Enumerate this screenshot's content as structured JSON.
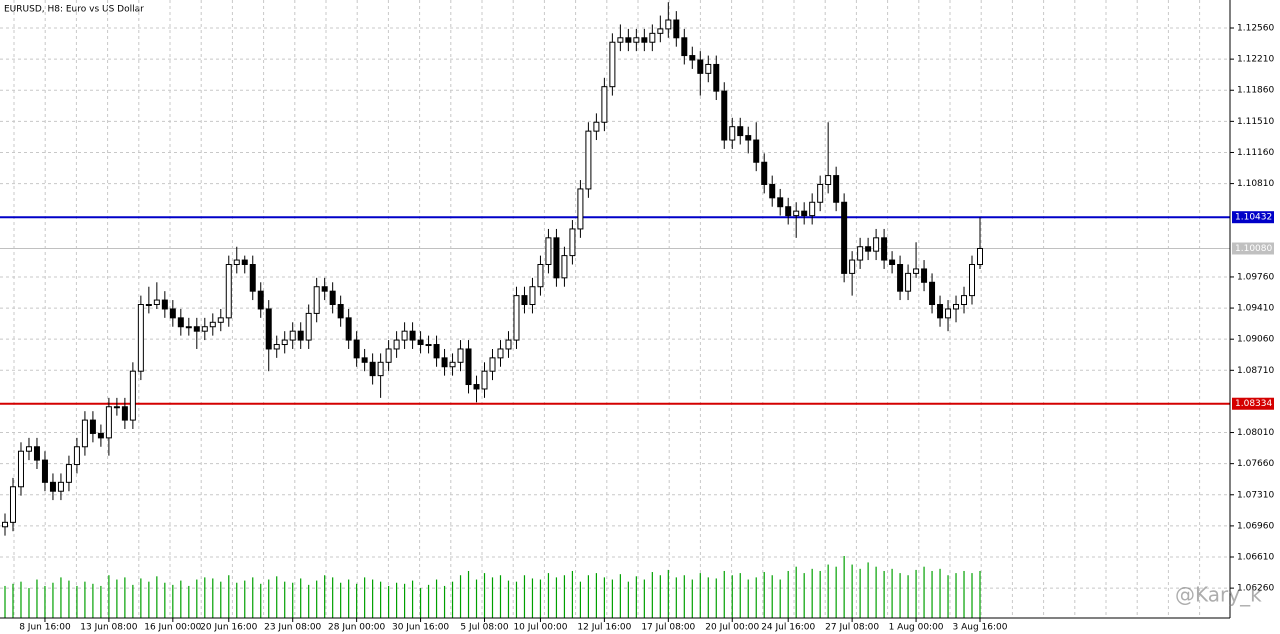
{
  "chart_data": {
    "type": "candlestick",
    "title": "EURUSD, H8:  Euro vs US Dollar",
    "watermark": "@Kary_k",
    "categories": [
      null,
      null,
      null,
      null,
      null,
      "8 Jun 16:00",
      null,
      null,
      null,
      null,
      null,
      null,
      null,
      "13 Jun 08:00",
      null,
      null,
      null,
      null,
      null,
      null,
      null,
      "16 Jun 00:00",
      null,
      null,
      null,
      null,
      null,
      null,
      "20 Jun 16:00",
      null,
      null,
      null,
      null,
      null,
      null,
      null,
      "23 Jun 08:00",
      null,
      null,
      null,
      null,
      null,
      null,
      null,
      "28 Jun 00:00",
      null,
      null,
      null,
      null,
      null,
      null,
      null,
      "30 Jun 16:00",
      null,
      null,
      null,
      null,
      null,
      null,
      null,
      "5 Jul 08:00",
      null,
      null,
      null,
      null,
      null,
      null,
      "10 Jul 00:00",
      null,
      null,
      null,
      null,
      null,
      null,
      null,
      "12 Jul 16:00",
      null,
      null,
      null,
      null,
      null,
      null,
      null,
      "17 Jul 08:00",
      null,
      null,
      null,
      null,
      null,
      null,
      null,
      "20 Jul 00:00",
      null,
      null,
      null,
      null,
      null,
      null,
      "24 Jul 16:00",
      null,
      null,
      null,
      null,
      null,
      null,
      null,
      "27 Jul 08:00",
      null,
      null,
      null,
      null,
      null,
      null,
      null,
      "1 Aug 00:00",
      null,
      null,
      null,
      null,
      null,
      null,
      null,
      "3 Aug 16:00"
    ],
    "open": [
      1.0695,
      1.07,
      1.074,
      1.078,
      1.0785,
      1.077,
      1.0745,
      1.0735,
      1.0745,
      1.0765,
      1.0785,
      1.0815,
      1.08,
      1.0795,
      1.083,
      1.083,
      1.0815,
      1.087,
      1.0945,
      1.0945,
      1.095,
      1.094,
      1.093,
      1.092,
      1.092,
      1.0915,
      1.092,
      1.0925,
      1.093,
      1.099,
      1.0995,
      1.099,
      1.096,
      1.094,
      1.0895,
      1.09,
      1.0905,
      1.0915,
      1.0905,
      1.0935,
      1.0965,
      1.096,
      1.0945,
      1.093,
      1.0905,
      1.0885,
      1.088,
      1.0865,
      1.088,
      1.0895,
      1.0905,
      1.0915,
      1.0905,
      1.09,
      1.09,
      1.0885,
      1.0875,
      1.088,
      1.0895,
      1.0855,
      1.085,
      1.087,
      1.0885,
      1.0895,
      1.0905,
      1.0955,
      1.0945,
      1.0965,
      1.099,
      1.102,
      1.0975,
      1.1,
      1.103,
      1.1075,
      1.114,
      1.115,
      1.119,
      1.124,
      1.1245,
      1.124,
      1.1245,
      1.124,
      1.125,
      1.1255,
      1.1265,
      1.1245,
      1.1225,
      1.122,
      1.1205,
      1.1215,
      1.1185,
      1.113,
      1.1145,
      1.1135,
      1.113,
      1.1105,
      1.108,
      1.1065,
      1.1055,
      1.1045,
      1.105,
      1.1045,
      1.106,
      1.108,
      1.109,
      1.106,
      1.098,
      1.0995,
      1.101,
      1.1005,
      1.102,
      1.0995,
      1.099,
      1.096,
      1.098,
      1.0985,
      1.097,
      1.0945,
      1.093,
      1.094,
      1.0945,
      1.0955,
      1.099
    ],
    "high": [
      1.071,
      1.075,
      1.079,
      1.0795,
      1.0795,
      1.078,
      1.0755,
      1.0755,
      1.0775,
      1.0795,
      1.0825,
      1.0825,
      1.081,
      1.084,
      1.084,
      1.084,
      1.088,
      1.0955,
      1.0965,
      1.097,
      1.096,
      1.095,
      1.094,
      1.093,
      1.093,
      1.093,
      1.0935,
      1.094,
      1.1,
      1.101,
      1.1,
      1.1,
      1.097,
      1.095,
      1.091,
      1.0915,
      1.0925,
      1.0925,
      1.0945,
      1.0975,
      1.0975,
      1.097,
      1.0955,
      1.094,
      1.0915,
      1.0895,
      1.089,
      1.089,
      1.0905,
      1.0915,
      1.0925,
      1.0925,
      1.0915,
      1.091,
      1.091,
      1.0895,
      1.089,
      1.0905,
      1.0905,
      1.0865,
      1.088,
      1.0895,
      1.0905,
      1.0915,
      1.0965,
      1.0965,
      1.0975,
      1.1,
      1.103,
      1.103,
      1.101,
      1.104,
      1.1085,
      1.115,
      1.116,
      1.12,
      1.125,
      1.126,
      1.1255,
      1.1255,
      1.1255,
      1.126,
      1.127,
      1.1285,
      1.1275,
      1.1255,
      1.1235,
      1.123,
      1.1225,
      1.1225,
      1.1195,
      1.1155,
      1.1155,
      1.1145,
      1.115,
      1.1115,
      1.109,
      1.1075,
      1.1065,
      1.106,
      1.106,
      1.107,
      1.109,
      1.115,
      1.11,
      1.107,
      1.1005,
      1.102,
      1.102,
      1.103,
      1.103,
      1.1005,
      1.1,
      1.099,
      1.1015,
      1.0995,
      1.098,
      1.0955,
      1.095,
      1.0955,
      1.0965,
      1.1,
      1.1043
    ],
    "low": [
      1.0685,
      1.069,
      1.073,
      1.077,
      1.076,
      1.0735,
      1.0725,
      1.0725,
      1.0735,
      1.0755,
      1.0775,
      1.079,
      1.0785,
      1.0775,
      1.082,
      1.0805,
      1.0805,
      1.086,
      1.0935,
      1.094,
      1.093,
      1.092,
      1.091,
      1.091,
      1.0895,
      1.0905,
      1.091,
      1.0915,
      1.092,
      1.098,
      1.098,
      1.095,
      1.093,
      1.087,
      1.0885,
      1.089,
      1.0895,
      1.0895,
      1.0895,
      1.0925,
      1.095,
      1.0935,
      1.092,
      1.0895,
      1.0875,
      1.087,
      1.0855,
      1.084,
      1.087,
      1.0885,
      1.0895,
      1.0895,
      1.089,
      1.089,
      1.0875,
      1.0865,
      1.0865,
      1.087,
      1.0845,
      1.0835,
      1.084,
      1.086,
      1.0875,
      1.0885,
      1.0895,
      1.0935,
      1.0935,
      1.0955,
      1.098,
      1.0965,
      1.0965,
      1.099,
      1.102,
      1.1065,
      1.113,
      1.114,
      1.118,
      1.123,
      1.123,
      1.123,
      1.123,
      1.123,
      1.124,
      1.1245,
      1.1235,
      1.1215,
      1.121,
      1.118,
      1.1195,
      1.1175,
      1.112,
      1.112,
      1.1125,
      1.1115,
      1.1095,
      1.107,
      1.1055,
      1.1045,
      1.1035,
      1.102,
      1.1035,
      1.1035,
      1.105,
      1.107,
      1.105,
      1.097,
      1.0955,
      1.0985,
      1.0995,
      1.0995,
      1.0985,
      1.098,
      1.095,
      1.095,
      1.0975,
      1.096,
      1.0935,
      1.092,
      1.0915,
      1.0925,
      1.0935,
      1.0945,
      1.0985
    ],
    "close": [
      1.07,
      1.074,
      1.078,
      1.0785,
      1.077,
      1.0745,
      1.0735,
      1.0745,
      1.0765,
      1.0785,
      1.0815,
      1.08,
      1.0795,
      1.083,
      1.083,
      1.0815,
      1.087,
      1.0945,
      1.0945,
      1.095,
      1.094,
      1.093,
      1.092,
      1.092,
      1.0915,
      1.092,
      1.0925,
      1.093,
      1.099,
      1.0995,
      1.099,
      1.096,
      1.094,
      1.0895,
      1.09,
      1.0905,
      1.0915,
      1.0905,
      1.0935,
      1.0965,
      1.096,
      1.0945,
      1.093,
      1.0905,
      1.0885,
      1.088,
      1.0865,
      1.088,
      1.0895,
      1.0905,
      1.0915,
      1.0905,
      1.09,
      1.09,
      1.0885,
      1.0875,
      1.088,
      1.0895,
      1.0855,
      1.085,
      1.087,
      1.0885,
      1.0895,
      1.0905,
      1.0955,
      1.0945,
      1.0965,
      1.099,
      1.102,
      1.0975,
      1.1,
      1.103,
      1.1075,
      1.114,
      1.115,
      1.119,
      1.124,
      1.1245,
      1.124,
      1.1245,
      1.124,
      1.125,
      1.1255,
      1.1265,
      1.1245,
      1.1225,
      1.122,
      1.1205,
      1.1215,
      1.1185,
      1.113,
      1.1145,
      1.1135,
      1.113,
      1.1105,
      1.108,
      1.1065,
      1.1055,
      1.1045,
      1.105,
      1.1045,
      1.106,
      1.108,
      1.109,
      1.106,
      1.098,
      1.0995,
      1.101,
      1.1005,
      1.102,
      1.0995,
      1.099,
      1.096,
      1.098,
      1.0985,
      1.097,
      1.0945,
      1.093,
      1.094,
      1.0945,
      1.0955,
      1.099,
      1.1008
    ],
    "volume": [
      30,
      32,
      34,
      28,
      36,
      30,
      33,
      38,
      35,
      30,
      34,
      32,
      30,
      40,
      36,
      38,
      31,
      37,
      34,
      39,
      33,
      31,
      35,
      30,
      36,
      38,
      37,
      34,
      40,
      33,
      35,
      38,
      32,
      36,
      39,
      34,
      33,
      37,
      31,
      35,
      40,
      38,
      33,
      36,
      32,
      38,
      36,
      34,
      30,
      33,
      32,
      35,
      28,
      31,
      36,
      30,
      34,
      40,
      44,
      36,
      42,
      38,
      40,
      35,
      34,
      40,
      37,
      36,
      42,
      38,
      40,
      44,
      34,
      40,
      42,
      38,
      36,
      41,
      34,
      39,
      36,
      43,
      40,
      45,
      38,
      40,
      36,
      42,
      38,
      37,
      44,
      40,
      42,
      36,
      38,
      43,
      40,
      36,
      44,
      48,
      42,
      46,
      44,
      50,
      48,
      58,
      50,
      46,
      52,
      48,
      44,
      46,
      42,
      40,
      45,
      48,
      44,
      46,
      40,
      42,
      44,
      42,
      44
    ],
    "ylim": [
      1.05924,
      1.12875
    ],
    "yticks": [
      {
        "value": 1.1256,
        "label": "1.12560"
      },
      {
        "value": 1.1221,
        "label": "1.12210"
      },
      {
        "value": 1.1186,
        "label": "1.11860"
      },
      {
        "value": 1.1151,
        "label": "1.11510"
      },
      {
        "value": 1.1116,
        "label": "1.11160"
      },
      {
        "value": 1.1081,
        "label": "1.10810"
      },
      {
        "value": 1.0976,
        "label": "1.09760"
      },
      {
        "value": 1.0941,
        "label": "1.09410"
      },
      {
        "value": 1.0906,
        "label": "1.09060"
      },
      {
        "value": 1.0871,
        "label": "1.08710"
      },
      {
        "value": 1.0801,
        "label": "1.08010"
      },
      {
        "value": 1.0766,
        "label": "1.07660"
      },
      {
        "value": 1.0731,
        "label": "1.07310"
      },
      {
        "value": 1.0696,
        "label": "1.06960"
      },
      {
        "value": 1.0661,
        "label": "1.06610"
      },
      {
        "value": 1.0626,
        "label": "1.06260"
      }
    ],
    "grid": true,
    "hlines": [
      {
        "value": 1.10432,
        "color": "#0000c8"
      },
      {
        "value": 1.08334,
        "color": "#d40000"
      }
    ],
    "bid": {
      "value": 1.1008,
      "label": "1.10080",
      "color": "#c0c0c0"
    },
    "bull_color": "#ffffff",
    "bear_color": "#000000",
    "volume_color": "#00a000"
  }
}
